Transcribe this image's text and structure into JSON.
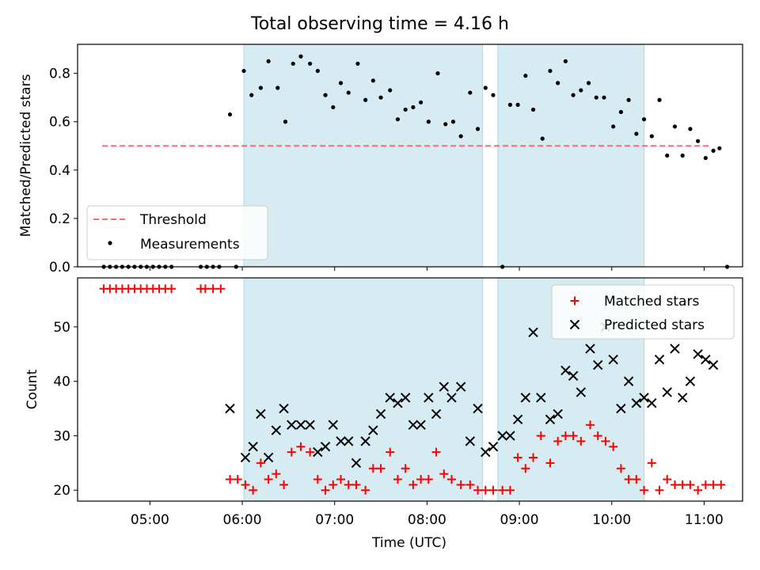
{
  "figure": {
    "title": "Total observing time = 4.16 h"
  },
  "chart_data": [
    {
      "type": "scatter",
      "ylabel": "Matched/Predicted stars",
      "xlabel": "",
      "xlim": [
        "04:13",
        "11:25"
      ],
      "ylim": [
        0,
        0.92
      ],
      "yticks": [
        0.0,
        0.2,
        0.4,
        0.6,
        0.8
      ],
      "ytick_labels": [
        "0.0",
        "0.2",
        "0.4",
        "0.6",
        "0.8"
      ],
      "shaded_intervals": [
        [
          "06:01",
          "08:36"
        ],
        [
          "08:46",
          "10:21"
        ]
      ],
      "shade_color": "#ADD8E6",
      "legend_position": "lower left",
      "threshold": {
        "name": "Threshold",
        "value": 0.5,
        "x_range": [
          "04:29",
          "11:04"
        ],
        "color": "#FF6B6B",
        "style": "dashed"
      },
      "series": [
        {
          "name": "Measurements",
          "color": "#000000",
          "marker": "dot",
          "points": [
            [
              "04:30",
              0
            ],
            [
              "04:34",
              0
            ],
            [
              "04:38",
              0
            ],
            [
              "04:42",
              0
            ],
            [
              "04:46",
              0
            ],
            [
              "04:50",
              0
            ],
            [
              "04:54",
              0
            ],
            [
              "04:58",
              0
            ],
            [
              "05:02",
              0
            ],
            [
              "05:06",
              0
            ],
            [
              "05:10",
              0
            ],
            [
              "05:14",
              0
            ],
            [
              "05:33",
              0
            ],
            [
              "05:37",
              0
            ],
            [
              "05:41",
              0
            ],
            [
              "05:45",
              0
            ],
            [
              "05:56",
              0
            ],
            [
              "05:52",
              0.63
            ],
            [
              "06:01",
              0.81
            ],
            [
              "06:06",
              0.71
            ],
            [
              "06:12",
              0.74
            ],
            [
              "06:17",
              0.85
            ],
            [
              "06:23",
              0.74
            ],
            [
              "06:28",
              0.6
            ],
            [
              "06:33",
              0.84
            ],
            [
              "06:38",
              0.87
            ],
            [
              "06:44",
              0.84
            ],
            [
              "06:49",
              0.81
            ],
            [
              "06:54",
              0.71
            ],
            [
              "06:59",
              0.66
            ],
            [
              "07:04",
              0.76
            ],
            [
              "07:09",
              0.72
            ],
            [
              "07:15",
              0.84
            ],
            [
              "07:20",
              0.69
            ],
            [
              "07:25",
              0.77
            ],
            [
              "07:30",
              0.7
            ],
            [
              "07:36",
              0.73
            ],
            [
              "07:41",
              0.61
            ],
            [
              "07:46",
              0.65
            ],
            [
              "07:51",
              0.66
            ],
            [
              "07:56",
              0.68
            ],
            [
              "08:01",
              0.6
            ],
            [
              "08:07",
              0.8
            ],
            [
              "08:12",
              0.59
            ],
            [
              "08:17",
              0.6
            ],
            [
              "08:22",
              0.54
            ],
            [
              "08:28",
              0.72
            ],
            [
              "08:33",
              0.57
            ],
            [
              "08:38",
              0.74
            ],
            [
              "08:43",
              0.71
            ],
            [
              "08:49",
              0
            ],
            [
              "08:54",
              0.67
            ],
            [
              "08:59",
              0.67
            ],
            [
              "09:04",
              0.79
            ],
            [
              "09:09",
              0.65
            ],
            [
              "09:15",
              0.53
            ],
            [
              "09:20",
              0.81
            ],
            [
              "09:25",
              0.76
            ],
            [
              "09:30",
              0.85
            ],
            [
              "09:35",
              0.71
            ],
            [
              "09:40",
              0.73
            ],
            [
              "09:45",
              0.76
            ],
            [
              "09:50",
              0.7
            ],
            [
              "09:55",
              0.7
            ],
            [
              "10:01",
              0.58
            ],
            [
              "10:06",
              0.64
            ],
            [
              "10:11",
              0.69
            ],
            [
              "10:16",
              0.55
            ],
            [
              "10:21",
              0.61
            ],
            [
              "10:26",
              0.54
            ],
            [
              "10:31",
              0.69
            ],
            [
              "10:36",
              0.46
            ],
            [
              "10:41",
              0.58
            ],
            [
              "10:46",
              0.46
            ],
            [
              "10:51",
              0.57
            ],
            [
              "10:56",
              0.52
            ],
            [
              "11:01",
              0.45
            ],
            [
              "11:06",
              0.48
            ],
            [
              "11:10",
              0.49
            ],
            [
              "11:15",
              0
            ]
          ]
        }
      ]
    },
    {
      "type": "scatter",
      "ylabel": "Count",
      "xlabel": "Time (UTC)",
      "xlim": [
        "04:13",
        "11:25"
      ],
      "ylim": [
        18,
        59
      ],
      "yticks": [
        20,
        30,
        40,
        50
      ],
      "ytick_labels": [
        "20",
        "30",
        "40",
        "50"
      ],
      "xticks": [
        "05:00",
        "06:00",
        "07:00",
        "08:00",
        "09:00",
        "10:00",
        "11:00"
      ],
      "xtick_labels": [
        "05:00",
        "06:00",
        "07:00",
        "08:00",
        "09:00",
        "10:00",
        "11:00"
      ],
      "shaded_intervals": [
        [
          "06:01",
          "08:36"
        ],
        [
          "08:46",
          "10:21"
        ]
      ],
      "shade_color": "#ADD8E6",
      "legend_position": "upper right",
      "series": [
        {
          "name": "Matched stars",
          "color": "#FF0000",
          "marker": "plus",
          "points": [
            [
              "04:30",
              57
            ],
            [
              "04:34",
              57
            ],
            [
              "04:38",
              57
            ],
            [
              "04:42",
              57
            ],
            [
              "04:46",
              57
            ],
            [
              "04:50",
              57
            ],
            [
              "04:54",
              57
            ],
            [
              "04:58",
              57
            ],
            [
              "05:02",
              57
            ],
            [
              "05:06",
              57
            ],
            [
              "05:10",
              57
            ],
            [
              "05:14",
              57
            ],
            [
              "05:33",
              57
            ],
            [
              "05:36",
              57
            ],
            [
              "05:41",
              57
            ],
            [
              "05:46",
              57
            ],
            [
              "05:52",
              22
            ],
            [
              "05:57",
              22
            ],
            [
              "06:02",
              21
            ],
            [
              "06:07",
              20
            ],
            [
              "06:12",
              25
            ],
            [
              "06:17",
              22
            ],
            [
              "06:22",
              23
            ],
            [
              "06:27",
              21
            ],
            [
              "06:32",
              27
            ],
            [
              "06:38",
              28
            ],
            [
              "06:44",
              27
            ],
            [
              "06:49",
              22
            ],
            [
              "06:54",
              20
            ],
            [
              "06:59",
              21
            ],
            [
              "07:04",
              22
            ],
            [
              "07:09",
              21
            ],
            [
              "07:14",
              21
            ],
            [
              "07:20",
              20
            ],
            [
              "07:25",
              24
            ],
            [
              "07:30",
              24
            ],
            [
              "07:36",
              27
            ],
            [
              "07:41",
              22
            ],
            [
              "07:46",
              24
            ],
            [
              "07:51",
              21
            ],
            [
              "07:56",
              22
            ],
            [
              "08:01",
              22
            ],
            [
              "08:06",
              27
            ],
            [
              "08:11",
              23
            ],
            [
              "08:16",
              22
            ],
            [
              "08:22",
              21
            ],
            [
              "08:28",
              21
            ],
            [
              "08:33",
              20
            ],
            [
              "08:38",
              20
            ],
            [
              "08:43",
              20
            ],
            [
              "08:49",
              20
            ],
            [
              "08:54",
              20
            ],
            [
              "08:59",
              26
            ],
            [
              "09:04",
              24
            ],
            [
              "09:09",
              26
            ],
            [
              "09:14",
              30
            ],
            [
              "09:20",
              25
            ],
            [
              "09:25",
              29
            ],
            [
              "09:30",
              30
            ],
            [
              "09:35",
              30
            ],
            [
              "09:40",
              29
            ],
            [
              "09:46",
              32
            ],
            [
              "09:51",
              30
            ],
            [
              "09:56",
              29
            ],
            [
              "10:01",
              28
            ],
            [
              "10:06",
              24
            ],
            [
              "10:11",
              22
            ],
            [
              "10:16",
              22
            ],
            [
              "10:21",
              20
            ],
            [
              "10:26",
              25
            ],
            [
              "10:31",
              20
            ],
            [
              "10:36",
              22
            ],
            [
              "10:41",
              21
            ],
            [
              "10:46",
              21
            ],
            [
              "10:51",
              21
            ],
            [
              "10:56",
              20
            ],
            [
              "11:01",
              21
            ],
            [
              "11:06",
              21
            ],
            [
              "11:11",
              21
            ]
          ]
        },
        {
          "name": "Predicted stars",
          "color": "#000000",
          "marker": "x",
          "points": [
            [
              "05:52",
              35
            ],
            [
              "06:02",
              26
            ],
            [
              "06:07",
              28
            ],
            [
              "06:12",
              34
            ],
            [
              "06:17",
              26
            ],
            [
              "06:22",
              31
            ],
            [
              "06:27",
              35
            ],
            [
              "06:32",
              32
            ],
            [
              "06:38",
              32
            ],
            [
              "06:44",
              32
            ],
            [
              "06:49",
              27
            ],
            [
              "06:54",
              28
            ],
            [
              "06:59",
              32
            ],
            [
              "07:04",
              29
            ],
            [
              "07:09",
              29
            ],
            [
              "07:14",
              25
            ],
            [
              "07:20",
              29
            ],
            [
              "07:25",
              31
            ],
            [
              "07:30",
              34
            ],
            [
              "07:36",
              37
            ],
            [
              "07:41",
              36
            ],
            [
              "07:46",
              37
            ],
            [
              "07:51",
              32
            ],
            [
              "07:56",
              32
            ],
            [
              "08:01",
              37
            ],
            [
              "08:06",
              34
            ],
            [
              "08:11",
              39
            ],
            [
              "08:16",
              37
            ],
            [
              "08:22",
              39
            ],
            [
              "08:28",
              29
            ],
            [
              "08:33",
              35
            ],
            [
              "08:38",
              27
            ],
            [
              "08:43",
              28
            ],
            [
              "08:49",
              30
            ],
            [
              "08:54",
              30
            ],
            [
              "08:59",
              33
            ],
            [
              "09:04",
              37
            ],
            [
              "09:09",
              49
            ],
            [
              "09:14",
              37
            ],
            [
              "09:20",
              33
            ],
            [
              "09:25",
              34
            ],
            [
              "09:30",
              42
            ],
            [
              "09:35",
              41
            ],
            [
              "09:40",
              38
            ],
            [
              "09:46",
              46
            ],
            [
              "09:51",
              43
            ],
            [
              "09:56",
              50
            ],
            [
              "10:01",
              44
            ],
            [
              "10:06",
              35
            ],
            [
              "10:11",
              40
            ],
            [
              "10:16",
              36
            ],
            [
              "10:21",
              37
            ],
            [
              "10:26",
              36
            ],
            [
              "10:31",
              44
            ],
            [
              "10:36",
              38
            ],
            [
              "10:41",
              46
            ],
            [
              "10:46",
              37
            ],
            [
              "10:51",
              40
            ],
            [
              "10:56",
              45
            ],
            [
              "11:01",
              44
            ],
            [
              "11:06",
              43
            ]
          ]
        }
      ]
    }
  ]
}
